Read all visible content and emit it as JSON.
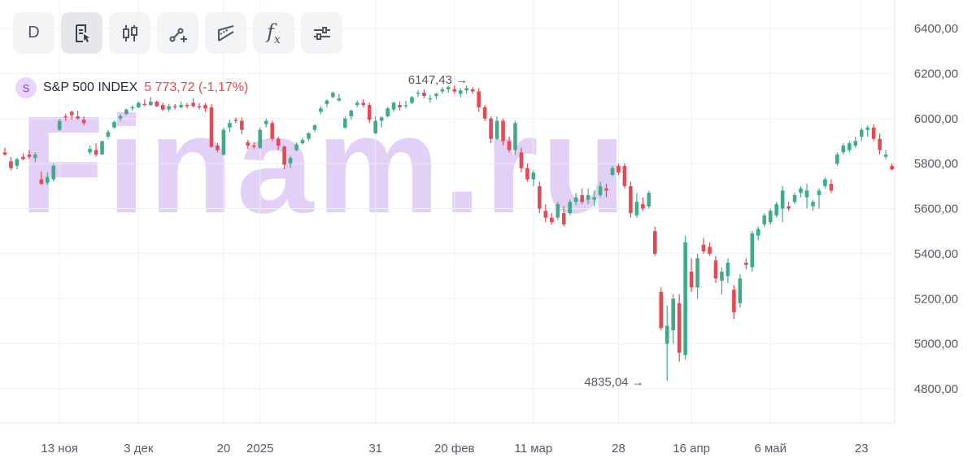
{
  "toolbar": {
    "interval_label": "D",
    "buttons": [
      {
        "name": "interval",
        "icon": "text-D"
      },
      {
        "name": "chart-settings",
        "icon": "document-cursor-icon"
      },
      {
        "name": "candles-type",
        "icon": "candlestick-icon"
      },
      {
        "name": "draw-line",
        "icon": "line-draw-icon"
      },
      {
        "name": "draw-shapes",
        "icon": "shape-draw-icon"
      },
      {
        "name": "indicators",
        "icon": "fx-icon"
      },
      {
        "name": "settings",
        "icon": "sliders-icon"
      }
    ],
    "fx_label": "f"
  },
  "legend": {
    "badge": "S",
    "name": "S&P 500 INDEX",
    "price": "5 773,72 (-1,17%)"
  },
  "watermark": "Finam.ru",
  "colors": {
    "up": "#3fab8a",
    "down": "#e24b55",
    "grid": "#eef0f3",
    "text": "#555b66",
    "watermark": "#e2d0f6"
  },
  "chart_data": {
    "type": "candlestick",
    "title": "",
    "y_axis_position": "right",
    "ylim": [
      4700,
      6480
    ],
    "y_ticks": [
      "6400,00",
      "6200,00",
      "6000,00",
      "5800,00",
      "5600,00",
      "5400,00",
      "5200,00",
      "5000,00",
      "4800,00"
    ],
    "y_tick_values": [
      6400,
      6200,
      6000,
      5800,
      5600,
      5400,
      5200,
      5000,
      4800
    ],
    "x_labels": [
      "13 ноя",
      "3 дек",
      "20",
      "2025",
      "31",
      "20 фев",
      "11 мар",
      "28",
      "16 апр",
      "6 май",
      "23"
    ],
    "x_label_index": [
      9,
      22,
      36,
      42,
      61,
      74,
      87,
      101,
      113,
      126,
      141
    ],
    "annotations": [
      {
        "text": "6147,43 →",
        "index": 77,
        "value": 6147.43,
        "kind": "max"
      },
      {
        "text": "4835,04 →",
        "index": 106,
        "value": 4835.04,
        "kind": "min"
      }
    ],
    "ohlc": [
      [
        5850,
        5870,
        5835,
        5840
      ],
      [
        5810,
        5830,
        5770,
        5780
      ],
      [
        5790,
        5825,
        5775,
        5820
      ],
      [
        5830,
        5845,
        5815,
        5820
      ],
      [
        5840,
        5860,
        5820,
        5830
      ],
      [
        5825,
        5850,
        5805,
        5840
      ],
      [
        5730,
        5765,
        5705,
        5710
      ],
      [
        5715,
        5760,
        5705,
        5740
      ],
      [
        5730,
        5800,
        5720,
        5790
      ],
      [
        5950,
        6000,
        5945,
        5990
      ],
      [
        6010,
        6020,
        5990,
        6005
      ],
      [
        6030,
        6035,
        5995,
        6015
      ],
      [
        6010,
        6035,
        5995,
        6000
      ],
      [
        5995,
        6010,
        5970,
        5980
      ],
      [
        5850,
        5880,
        5840,
        5865
      ],
      [
        5860,
        5890,
        5830,
        5840
      ],
      [
        5840,
        5900,
        5840,
        5900
      ],
      [
        5920,
        5950,
        5910,
        5940
      ],
      [
        5960,
        5990,
        5955,
        5985
      ],
      [
        6000,
        6020,
        5990,
        6010
      ],
      [
        6020,
        6045,
        6015,
        6040
      ],
      [
        6045,
        6060,
        6035,
        6050
      ],
      [
        6050,
        6075,
        6045,
        6070
      ],
      [
        6065,
        6085,
        6055,
        6060
      ],
      [
        6060,
        6095,
        6055,
        6075
      ],
      [
        6075,
        6080,
        6050,
        6055
      ],
      [
        6060,
        6070,
        6035,
        6040
      ],
      [
        6040,
        6065,
        6030,
        6055
      ],
      [
        6055,
        6065,
        6040,
        6050
      ],
      [
        6050,
        6075,
        6045,
        6060
      ],
      [
        6060,
        6070,
        6045,
        6055
      ],
      [
        6070,
        6090,
        6050,
        6055
      ],
      [
        6055,
        6070,
        6040,
        6050
      ],
      [
        6060,
        6070,
        6030,
        6045
      ],
      [
        6050,
        6065,
        5870,
        5875
      ],
      [
        5880,
        5890,
        5850,
        5860
      ],
      [
        5840,
        5960,
        5835,
        5950
      ],
      [
        5960,
        5995,
        5940,
        5980
      ],
      [
        5995,
        6005,
        5980,
        5990
      ],
      [
        5990,
        6005,
        5930,
        5950
      ],
      [
        5895,
        5905,
        5865,
        5880
      ],
      [
        5880,
        5895,
        5865,
        5875
      ],
      [
        5870,
        5960,
        5865,
        5950
      ],
      [
        5975,
        6000,
        5960,
        5990
      ],
      [
        5980,
        5990,
        5900,
        5910
      ],
      [
        5910,
        5920,
        5860,
        5880
      ],
      [
        5875,
        5880,
        5775,
        5795
      ],
      [
        5800,
        5835,
        5780,
        5825
      ],
      [
        5860,
        5895,
        5855,
        5885
      ],
      [
        5890,
        5915,
        5885,
        5905
      ],
      [
        5910,
        5940,
        5900,
        5935
      ],
      [
        5950,
        5975,
        5940,
        5970
      ],
      [
        6030,
        6055,
        6020,
        6045
      ],
      [
        6065,
        6085,
        6050,
        6080
      ],
      [
        6095,
        6120,
        6090,
        6115
      ],
      [
        6080,
        6110,
        6075,
        6090
      ],
      [
        5960,
        6010,
        5955,
        6000
      ],
      [
        6010,
        6040,
        5995,
        6035
      ],
      [
        6060,
        6080,
        6050,
        6070
      ],
      [
        6070,
        6085,
        6050,
        6060
      ],
      [
        6060,
        6070,
        5980,
        5995
      ],
      [
        5935,
        6010,
        5930,
        5990
      ],
      [
        5990,
        6010,
        5960,
        6005
      ],
      [
        6010,
        6050,
        6005,
        6045
      ],
      [
        6040,
        6075,
        6030,
        6070
      ],
      [
        6060,
        6075,
        6035,
        6050
      ],
      [
        6055,
        6080,
        6045,
        6060
      ],
      [
        6070,
        6100,
        6065,
        6095
      ],
      [
        6110,
        6125,
        6095,
        6115
      ],
      [
        6115,
        6130,
        6090,
        6100
      ],
      [
        6085,
        6105,
        6070,
        6090
      ],
      [
        6100,
        6115,
        6085,
        6110
      ],
      [
        6120,
        6140,
        6110,
        6130
      ],
      [
        6130,
        6145,
        6115,
        6140
      ],
      [
        6130,
        6147,
        6110,
        6120
      ],
      [
        6110,
        6135,
        6095,
        6125
      ],
      [
        6125,
        6147,
        6110,
        6135
      ],
      [
        6130,
        6140,
        6110,
        6120
      ],
      [
        6120,
        6135,
        6030,
        6050
      ],
      [
        6050,
        6060,
        5990,
        6000
      ],
      [
        6000,
        6010,
        5890,
        5910
      ],
      [
        5910,
        6010,
        5905,
        5990
      ],
      [
        5990,
        6000,
        5880,
        5900
      ],
      [
        5900,
        5920,
        5850,
        5860
      ],
      [
        5860,
        5990,
        5840,
        5980
      ],
      [
        5850,
        5870,
        5760,
        5780
      ],
      [
        5780,
        5800,
        5720,
        5730
      ],
      [
        5730,
        5770,
        5700,
        5760
      ],
      [
        5700,
        5720,
        5580,
        5600
      ],
      [
        5590,
        5620,
        5540,
        5560
      ],
      [
        5560,
        5580,
        5530,
        5540
      ],
      [
        5560,
        5630,
        5550,
        5620
      ],
      [
        5580,
        5610,
        5520,
        5530
      ],
      [
        5580,
        5640,
        5570,
        5630
      ],
      [
        5630,
        5670,
        5615,
        5650
      ],
      [
        5660,
        5690,
        5620,
        5630
      ],
      [
        5640,
        5690,
        5620,
        5660
      ],
      [
        5640,
        5680,
        5610,
        5650
      ],
      [
        5660,
        5720,
        5650,
        5700
      ],
      [
        5690,
        5710,
        5650,
        5680
      ],
      [
        5750,
        5790,
        5745,
        5780
      ],
      [
        5790,
        5800,
        5750,
        5760
      ],
      [
        5790,
        5800,
        5690,
        5700
      ],
      [
        5700,
        5720,
        5560,
        5580
      ],
      [
        5570,
        5670,
        5560,
        5630
      ],
      [
        5620,
        5650,
        5590,
        5600
      ],
      [
        5610,
        5680,
        5600,
        5670
      ],
      [
        5500,
        5520,
        5390,
        5400
      ],
      [
        5230,
        5250,
        5060,
        5070
      ],
      [
        5000,
        5170,
        4835,
        5080
      ],
      [
        5060,
        5220,
        5000,
        5200
      ],
      [
        5180,
        5220,
        4920,
        4960
      ],
      [
        4950,
        5480,
        4930,
        5450
      ],
      [
        5320,
        5380,
        5230,
        5250
      ],
      [
        5250,
        5400,
        5200,
        5380
      ],
      [
        5440,
        5470,
        5400,
        5410
      ],
      [
        5430,
        5450,
        5390,
        5400
      ],
      [
        5370,
        5390,
        5270,
        5290
      ],
      [
        5280,
        5340,
        5220,
        5320
      ],
      [
        5300,
        5380,
        5270,
        5360
      ],
      [
        5240,
        5260,
        5110,
        5140
      ],
      [
        5180,
        5310,
        5160,
        5290
      ],
      [
        5360,
        5380,
        5330,
        5350
      ],
      [
        5340,
        5500,
        5320,
        5490
      ],
      [
        5480,
        5520,
        5460,
        5510
      ],
      [
        5530,
        5580,
        5520,
        5570
      ],
      [
        5540,
        5600,
        5530,
        5590
      ],
      [
        5570,
        5630,
        5560,
        5620
      ],
      [
        5600,
        5700,
        5540,
        5680
      ],
      [
        5610,
        5630,
        5590,
        5600
      ],
      [
        5630,
        5670,
        5620,
        5660
      ],
      [
        5670,
        5700,
        5650,
        5690
      ],
      [
        5650,
        5710,
        5600,
        5680
      ],
      [
        5610,
        5640,
        5590,
        5630
      ],
      [
        5660,
        5690,
        5600,
        5680
      ],
      [
        5700,
        5740,
        5690,
        5730
      ],
      [
        5710,
        5730,
        5670,
        5680
      ],
      [
        5800,
        5850,
        5790,
        5840
      ],
      [
        5850,
        5890,
        5840,
        5880
      ],
      [
        5860,
        5900,
        5850,
        5890
      ],
      [
        5880,
        5920,
        5870,
        5900
      ],
      [
        5920,
        5960,
        5900,
        5950
      ],
      [
        5950,
        5970,
        5920,
        5960
      ],
      [
        5960,
        5975,
        5900,
        5910
      ],
      [
        5910,
        5935,
        5840,
        5860
      ],
      [
        5830,
        5860,
        5820,
        5840
      ],
      [
        5790,
        5800,
        5770,
        5774
      ]
    ]
  }
}
